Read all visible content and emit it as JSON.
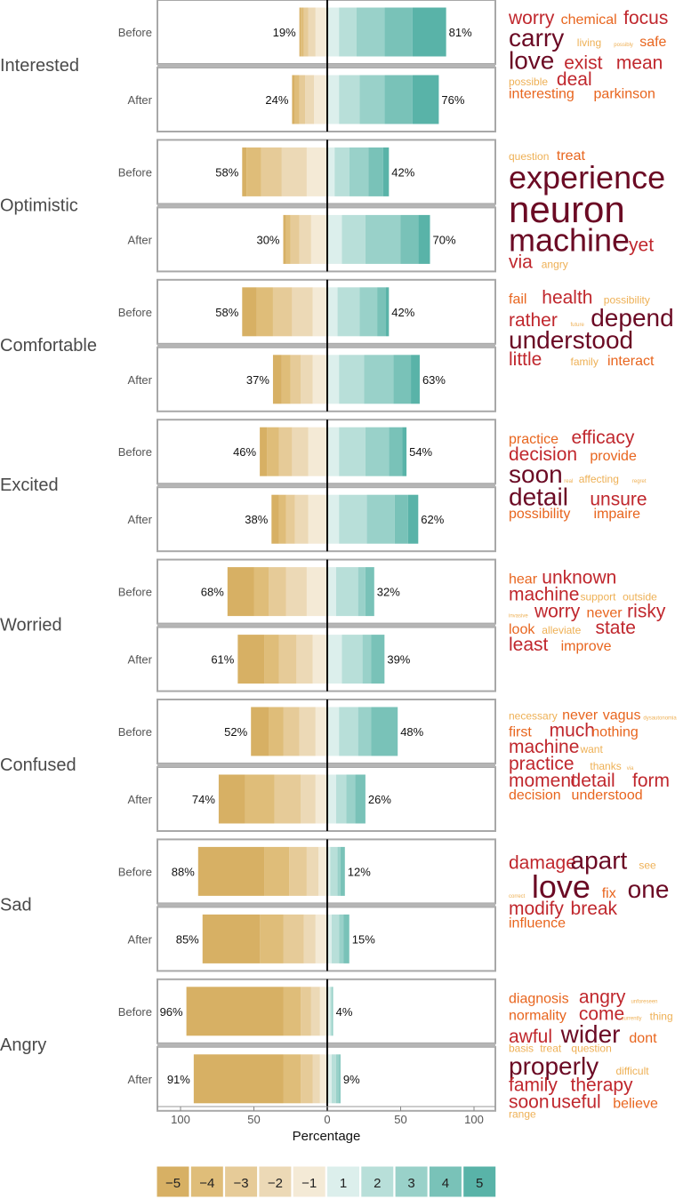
{
  "chart_data": {
    "type": "bar",
    "subtype": "diverging-stacked",
    "xlabel": "Percentage",
    "x_ticks": [
      "100",
      "50",
      "0",
      "50",
      "100"
    ],
    "xlim": [
      -115,
      115
    ],
    "grid": false,
    "legend_position": "bottom",
    "sublabels": [
      "Before",
      "After"
    ],
    "scale_levels": [
      "−5",
      "−4",
      "−3",
      "−2",
      "−1",
      "1",
      "2",
      "3",
      "4",
      "5"
    ],
    "colors": [
      "#d7b064",
      "#dfbd79",
      "#e6cb98",
      "#ecd9b6",
      "#f4ead6",
      "#dcefec",
      "#b8dfd9",
      "#99d1c9",
      "#79c2b8",
      "#59b3a8",
      "#6b0a24",
      "#c0272d",
      "#e8651e",
      "#eeb055"
    ],
    "panels": [
      {
        "emotion": "Interested",
        "rows": [
          {
            "label": "Before",
            "neg_pct": "19%",
            "pos_pct": "81%",
            "neg": [
              1,
              2,
              3,
              5,
              8
            ],
            "pos": [
              8,
              12,
              19,
              19,
              23
            ]
          },
          {
            "label": "After",
            "neg_pct": "24%",
            "pos_pct": "76%",
            "neg": [
              2,
              3,
              4,
              6,
              9
            ],
            "pos": [
              8,
              14,
              17,
              19,
              18
            ]
          }
        ],
        "words": [
          {
            "text": "worry",
            "w": 3
          },
          {
            "text": "chemical",
            "w": 2
          },
          {
            "text": "focus",
            "w": 3
          },
          {
            "text": "carry",
            "w": 4
          },
          {
            "text": "living",
            "w": 1
          },
          {
            "text": "possibly",
            "w": 0
          },
          {
            "text": "safe",
            "w": 2
          },
          {
            "text": "love",
            "w": 4
          },
          {
            "text": "exist",
            "w": 3
          },
          {
            "text": "mean",
            "w": 3
          },
          {
            "text": "possible",
            "w": 1
          },
          {
            "text": "deal",
            "w": 3
          },
          {
            "text": "interesting",
            "w": 2
          },
          {
            "text": "parkinson",
            "w": 2
          }
        ]
      },
      {
        "emotion": "Optimistic",
        "rows": [
          {
            "label": "Before",
            "neg_pct": "58%",
            "pos_pct": "42%",
            "neg": [
              3,
              10,
              14,
              17,
              14
            ],
            "pos": [
              5,
              10,
              13,
              10,
              4
            ]
          },
          {
            "label": "After",
            "neg_pct": "30%",
            "pos_pct": "70%",
            "neg": [
              2,
              3,
              6,
              8,
              11
            ],
            "pos": [
              10,
              16,
              24,
              12,
              8
            ]
          }
        ],
        "words": [
          {
            "text": "question",
            "w": 1
          },
          {
            "text": "treat",
            "w": 2
          },
          {
            "text": "experience",
            "w": 5
          },
          {
            "text": "neuron",
            "w": 6
          },
          {
            "text": "machine",
            "w": 5
          },
          {
            "text": "yet",
            "w": 3
          },
          {
            "text": "via",
            "w": 3
          },
          {
            "text": "angry",
            "w": 1
          }
        ]
      },
      {
        "emotion": "Comfortable",
        "rows": [
          {
            "label": "Before",
            "neg_pct": "58%",
            "pos_pct": "42%",
            "neg": [
              10,
              11,
              13,
              14,
              10
            ],
            "pos": [
              7,
              15,
              12,
              6,
              2
            ]
          },
          {
            "label": "After",
            "neg_pct": "37%",
            "pos_pct": "63%",
            "neg": [
              6,
              6,
              7,
              8,
              10
            ],
            "pos": [
              8,
              17,
              20,
              12,
              6
            ]
          }
        ],
        "words": [
          {
            "text": "fail",
            "w": 2
          },
          {
            "text": "health",
            "w": 3
          },
          {
            "text": "possibility",
            "w": 1
          },
          {
            "text": "rather",
            "w": 3
          },
          {
            "text": "future",
            "w": 0
          },
          {
            "text": "depend",
            "w": 4
          },
          {
            "text": "understood",
            "w": 4
          },
          {
            "text": "little",
            "w": 3
          },
          {
            "text": "family",
            "w": 1
          },
          {
            "text": "interact",
            "w": 2
          }
        ]
      },
      {
        "emotion": "Excited",
        "rows": [
          {
            "label": "Before",
            "neg_pct": "46%",
            "pos_pct": "54%",
            "neg": [
              5,
              8,
              9,
              11,
              13
            ],
            "pos": [
              8,
              18,
              16,
              9,
              3
            ]
          },
          {
            "label": "After",
            "neg_pct": "38%",
            "pos_pct": "62%",
            "neg": [
              5,
              5,
              6,
              9,
              13
            ],
            "pos": [
              8,
              19,
              19,
              9,
              7
            ]
          }
        ],
        "words": [
          {
            "text": "practice",
            "w": 2
          },
          {
            "text": "efficacy",
            "w": 3
          },
          {
            "text": "decision",
            "w": 3
          },
          {
            "text": "provide",
            "w": 2
          },
          {
            "text": "soon",
            "w": 4
          },
          {
            "text": "real",
            "w": 0
          },
          {
            "text": "affecting",
            "w": 1
          },
          {
            "text": "regret",
            "w": 0
          },
          {
            "text": "detail",
            "w": 4
          },
          {
            "text": "unsure",
            "w": 3
          },
          {
            "text": "possibility",
            "w": 2
          },
          {
            "text": "impaire",
            "w": 2
          }
        ]
      },
      {
        "emotion": "Worried",
        "rows": [
          {
            "label": "Before",
            "neg_pct": "68%",
            "pos_pct": "32%",
            "neg": [
              18,
              10,
              12,
              14,
              14
            ],
            "pos": [
              6,
              15,
              5,
              6,
              0
            ]
          },
          {
            "label": "After",
            "neg_pct": "61%",
            "pos_pct": "39%",
            "neg": [
              18,
              10,
              12,
              11,
              10
            ],
            "pos": [
              10,
              14,
              6,
              9,
              0
            ]
          }
        ],
        "words": [
          {
            "text": "hear",
            "w": 2
          },
          {
            "text": "unknown",
            "w": 3
          },
          {
            "text": "machine",
            "w": 3
          },
          {
            "text": "support",
            "w": 1
          },
          {
            "text": "outside",
            "w": 1
          },
          {
            "text": "invasive",
            "w": 0
          },
          {
            "text": "worry",
            "w": 3
          },
          {
            "text": "never",
            "w": 2
          },
          {
            "text": "risky",
            "w": 3
          },
          {
            "text": "look",
            "w": 2
          },
          {
            "text": "alleviate",
            "w": 1
          },
          {
            "text": "state",
            "w": 3
          },
          {
            "text": "least",
            "w": 3
          },
          {
            "text": "improve",
            "w": 2
          }
        ]
      },
      {
        "emotion": "Confused",
        "rows": [
          {
            "label": "Before",
            "neg_pct": "52%",
            "pos_pct": "48%",
            "neg": [
              12,
              10,
              11,
              11,
              8
            ],
            "pos": [
              8,
              13,
              9,
              18,
              0
            ]
          },
          {
            "label": "After",
            "neg_pct": "74%",
            "pos_pct": "26%",
            "neg": [
              18,
              20,
              18,
              10,
              8
            ],
            "pos": [
              6,
              7,
              6,
              7,
              0
            ]
          }
        ],
        "words": [
          {
            "text": "necessary",
            "w": 1
          },
          {
            "text": "never",
            "w": 2
          },
          {
            "text": "vagus",
            "w": 2
          },
          {
            "text": "dysautonomia",
            "w": 0
          },
          {
            "text": "first",
            "w": 2
          },
          {
            "text": "much",
            "w": 3
          },
          {
            "text": "nothing",
            "w": 2
          },
          {
            "text": "machine",
            "w": 3
          },
          {
            "text": "want",
            "w": 1
          },
          {
            "text": "practice",
            "w": 3
          },
          {
            "text": "thanks",
            "w": 1
          },
          {
            "text": "via",
            "w": 0
          },
          {
            "text": "moment",
            "w": 3
          },
          {
            "text": "detail",
            "w": 3
          },
          {
            "text": "form",
            "w": 3
          },
          {
            "text": "decision",
            "w": 2
          },
          {
            "text": "understood",
            "w": 2
          }
        ]
      },
      {
        "emotion": "Sad",
        "rows": [
          {
            "label": "Before",
            "neg_pct": "88%",
            "pos_pct": "12%",
            "neg": [
              45,
              17,
              12,
              8,
              6
            ],
            "pos": [
              2,
              5,
              2,
              3,
              0
            ]
          },
          {
            "label": "After",
            "neg_pct": "85%",
            "pos_pct": "15%",
            "neg": [
              39,
              16,
              14,
              8,
              8
            ],
            "pos": [
              3,
              5,
              3,
              4,
              0
            ]
          }
        ],
        "words": [
          {
            "text": "damage",
            "w": 3
          },
          {
            "text": "apart",
            "w": 4
          },
          {
            "text": "see",
            "w": 1
          },
          {
            "text": "correct",
            "w": 0
          },
          {
            "text": "love",
            "w": 5
          },
          {
            "text": "fix",
            "w": 2
          },
          {
            "text": "one",
            "w": 4
          },
          {
            "text": "modify",
            "w": 3
          },
          {
            "text": "break",
            "w": 3
          },
          {
            "text": "influence",
            "w": 2
          }
        ]
      },
      {
        "emotion": "Angry",
        "rows": [
          {
            "label": "Before",
            "neg_pct": "96%",
            "pos_pct": "4%",
            "neg": [
              66,
              12,
              7,
              6,
              5
            ],
            "pos": [
              2,
              1,
              1,
              0,
              0
            ]
          },
          {
            "label": "After",
            "neg_pct": "91%",
            "pos_pct": "9%",
            "neg": [
              61,
              12,
              8,
              5,
              5
            ],
            "pos": [
              3,
              3,
              2,
              1,
              0
            ]
          }
        ],
        "words": [
          {
            "text": "diagnosis",
            "w": 2
          },
          {
            "text": "angry",
            "w": 3
          },
          {
            "text": "unforeseen",
            "w": 0
          },
          {
            "text": "normality",
            "w": 2
          },
          {
            "text": "come",
            "w": 3
          },
          {
            "text": "currently",
            "w": 0
          },
          {
            "text": "thing",
            "w": 1
          },
          {
            "text": "awful",
            "w": 3
          },
          {
            "text": "wider",
            "w": 4
          },
          {
            "text": "dont",
            "w": 2
          },
          {
            "text": "basis",
            "w": 1
          },
          {
            "text": "treat",
            "w": 1
          },
          {
            "text": "question",
            "w": 1
          },
          {
            "text": "properly",
            "w": 4
          },
          {
            "text": "difficult",
            "w": 1
          },
          {
            "text": "family",
            "w": 3
          },
          {
            "text": "therapy",
            "w": 3
          },
          {
            "text": "soon",
            "w": 3
          },
          {
            "text": "useful",
            "w": 3
          },
          {
            "text": "believe",
            "w": 2
          },
          {
            "text": "range",
            "w": 1
          }
        ]
      }
    ]
  }
}
